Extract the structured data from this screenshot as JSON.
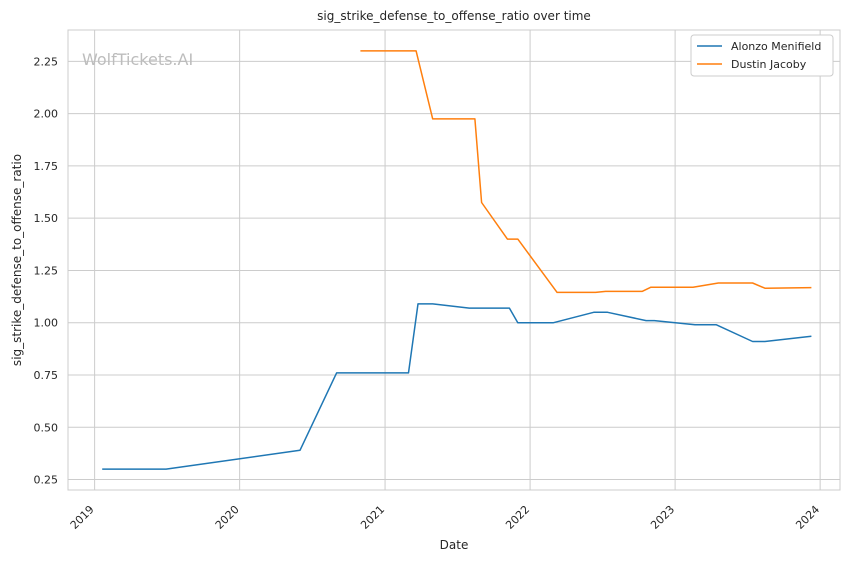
{
  "chart_data": {
    "type": "line",
    "title": "sig_strike_defense_to_offense_ratio over time",
    "xlabel": "Date",
    "ylabel": "sig_strike_defense_to_offense_ratio",
    "watermark": "WolfTickets.AI",
    "x_axis_type": "date",
    "xlim": [
      "2018-10-26",
      "2024-02-20"
    ],
    "ylim": [
      0.2,
      2.4
    ],
    "x_ticks": [
      "2019",
      "2020",
      "2021",
      "2022",
      "2023",
      "2024"
    ],
    "y_ticks": [
      "0.25",
      "0.50",
      "0.75",
      "1.00",
      "1.25",
      "1.50",
      "1.75",
      "2.00",
      "2.25"
    ],
    "grid": true,
    "legend_position": "top-right",
    "series": [
      {
        "name": "Alonzo Menifield",
        "color": "#1f77b4",
        "points": [
          [
            "2019-01-20",
            0.3
          ],
          [
            "2019-06-30",
            0.3
          ],
          [
            "2020-06-01",
            0.39
          ],
          [
            "2020-09-01",
            0.76
          ],
          [
            "2021-03-01",
            0.76
          ],
          [
            "2021-03-25",
            1.09
          ],
          [
            "2021-05-01",
            1.09
          ],
          [
            "2021-08-01",
            1.07
          ],
          [
            "2021-11-10",
            1.07
          ],
          [
            "2021-12-01",
            1.0
          ],
          [
            "2022-03-01",
            1.0
          ],
          [
            "2022-06-10",
            1.05
          ],
          [
            "2022-07-15",
            1.05
          ],
          [
            "2022-10-20",
            1.01
          ],
          [
            "2022-11-10",
            1.01
          ],
          [
            "2023-02-20",
            0.99
          ],
          [
            "2023-04-15",
            0.99
          ],
          [
            "2023-07-15",
            0.91
          ],
          [
            "2023-08-15",
            0.91
          ],
          [
            "2023-12-10",
            0.935
          ]
        ]
      },
      {
        "name": "Dustin Jacoby",
        "color": "#ff7f0e",
        "points": [
          [
            "2020-10-31",
            2.3
          ],
          [
            "2021-03-20",
            2.3
          ],
          [
            "2021-05-01",
            1.975
          ],
          [
            "2021-08-15",
            1.975
          ],
          [
            "2021-09-01",
            1.575
          ],
          [
            "2021-11-05",
            1.4
          ],
          [
            "2021-12-01",
            1.4
          ],
          [
            "2022-03-10",
            1.145
          ],
          [
            "2022-06-15",
            1.145
          ],
          [
            "2022-07-10",
            1.15
          ],
          [
            "2022-10-10",
            1.15
          ],
          [
            "2022-11-01",
            1.17
          ],
          [
            "2023-02-15",
            1.17
          ],
          [
            "2023-04-20",
            1.19
          ],
          [
            "2023-07-15",
            1.19
          ],
          [
            "2023-08-15",
            1.165
          ],
          [
            "2023-12-10",
            1.168
          ]
        ]
      }
    ]
  }
}
